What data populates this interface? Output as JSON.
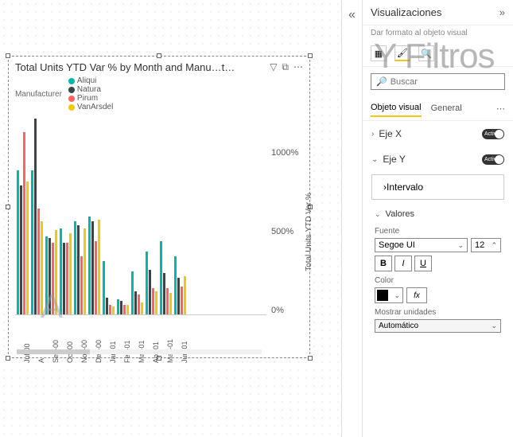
{
  "chart": {
    "title": "Total Units YTD Var % by Month and Manu…t…",
    "y_axis_title": "Total Units YTD Var %",
    "legend_title": "Manufacturer",
    "y_ticks": [
      "1000%",
      "500%",
      "0%"
    ],
    "y_max": 1200,
    "series": [
      {
        "name": "Aliqui",
        "color": "#01b8aa"
      },
      {
        "name": "Natura",
        "color": "#374649"
      },
      {
        "name": "Pirum",
        "color": "#fd625e"
      },
      {
        "name": "VanArsdel",
        "color": "#f2c80f"
      }
    ],
    "months": [
      {
        "label": "Jul-00",
        "values": [
          870,
          780,
          1100,
          800
        ]
      },
      {
        "label": "A",
        "values": [
          870,
          1180,
          640,
          560
        ]
      },
      {
        "label": "Sep-00",
        "values": [
          470,
          460,
          430,
          510
        ]
      },
      {
        "label": "Oct-00",
        "values": [
          520,
          430,
          430,
          490
        ]
      },
      {
        "label": "Nov-00",
        "values": [
          560,
          540,
          350,
          520
        ]
      },
      {
        "label": "Dec-00",
        "values": [
          590,
          560,
          440,
          570
        ]
      },
      {
        "label": "Jan-01",
        "values": [
          320,
          100,
          60,
          50
        ]
      },
      {
        "label": "Feb-01",
        "values": [
          90,
          80,
          60,
          60
        ]
      },
      {
        "label": "Mar-01",
        "values": [
          260,
          140,
          120,
          70
        ]
      },
      {
        "label": "Apr-01",
        "values": [
          380,
          270,
          160,
          140
        ]
      },
      {
        "label": "May-01",
        "values": [
          440,
          250,
          160,
          130
        ]
      },
      {
        "label": "Jun-01",
        "values": [
          350,
          220,
          170,
          230
        ]
      }
    ]
  },
  "pane": {
    "title": "Visualizaciones",
    "subtitle": "Dar formato al objeto visual",
    "search_placeholder": "Buscar",
    "tab_visual": "Objeto visual",
    "tab_general": "General",
    "card_eje_x": "Eje X",
    "card_eje_y": "Eje Y",
    "toggle_text": "Activa",
    "intervalo": "Intervalo",
    "valores": "Valores",
    "fuente_label": "Fuente",
    "font_name": "Segoe UI",
    "font_size": "12",
    "color_label": "Color",
    "color_value": "#000000",
    "fx": "fx",
    "units_label": "Mostrar unidades",
    "units_value": "Automático"
  },
  "watermarks": {
    "a": "A",
    "b": "Y Filtros"
  }
}
